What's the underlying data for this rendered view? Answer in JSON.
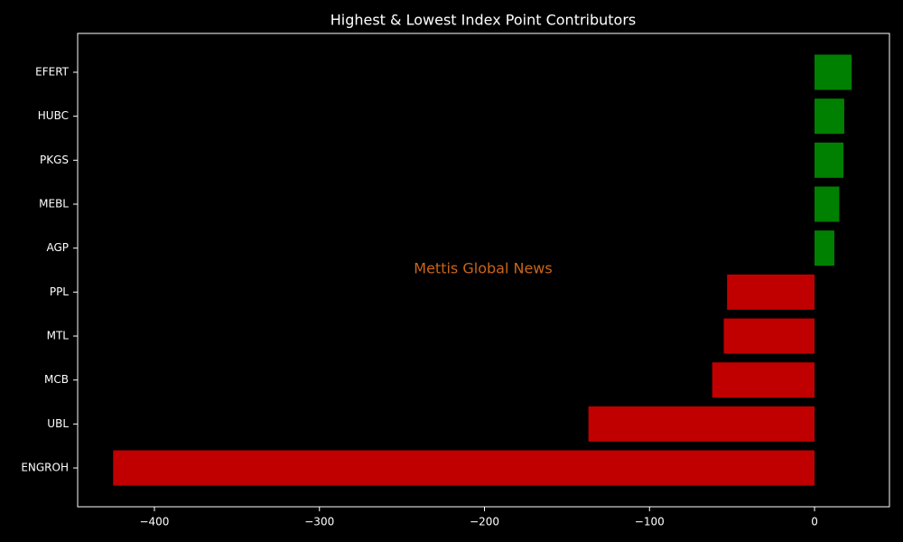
{
  "chart_data": {
    "type": "barh",
    "title": "Highest & Lowest Index Point Contributors",
    "annotation": "Mettis Global News",
    "annotation_color": "#c8651b",
    "categories": [
      "EFERT",
      "HUBC",
      "PKGS",
      "MEBL",
      "AGP",
      "PPL",
      "MTL",
      "MCB",
      "UBL",
      "ENGROH"
    ],
    "values": [
      22.5,
      18,
      17.5,
      15,
      12,
      -53,
      -55,
      -62,
      -137,
      -425
    ],
    "colors": [
      "#008000",
      "#008000",
      "#008000",
      "#008000",
      "#008000",
      "#c00000",
      "#c00000",
      "#c00000",
      "#c00000",
      "#c00000"
    ],
    "xlim": [
      -446.5,
      45.4
    ],
    "xticks": [
      {
        "value": -400,
        "label": "−400"
      },
      {
        "value": -300,
        "label": "−300"
      },
      {
        "value": -200,
        "label": "−200"
      },
      {
        "value": -100,
        "label": "−100"
      },
      0
    ]
  }
}
